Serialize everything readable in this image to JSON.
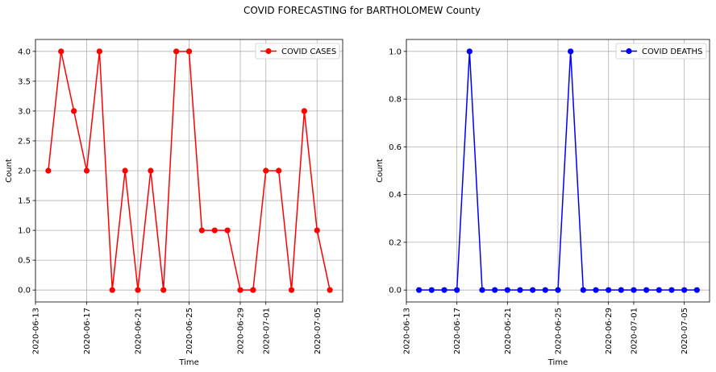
{
  "figure": {
    "title": "COVID FORECASTING for BARTHOLOMEW County"
  },
  "chart_data": [
    {
      "type": "line",
      "xlabel": "Time",
      "ylabel": "Count",
      "grid": true,
      "legend_position": "top-right",
      "x_range": [
        "2020-06-13",
        "2020-07-07"
      ],
      "y_range": [
        -0.2,
        4.2
      ],
      "x_ticks": [
        "2020-06-13",
        "2020-06-17",
        "2020-06-21",
        "2020-06-25",
        "2020-06-29",
        "2020-07-01",
        "2020-07-05"
      ],
      "y_ticks": [
        "0.0",
        "0.5",
        "1.0",
        "1.5",
        "2.0",
        "2.5",
        "3.0",
        "3.5",
        "4.0"
      ],
      "series": [
        {
          "name": "COVID CASES",
          "color": "#ff0000",
          "x": [
            "2020-06-14",
            "2020-06-15",
            "2020-06-16",
            "2020-06-17",
            "2020-06-18",
            "2020-06-19",
            "2020-06-20",
            "2020-06-21",
            "2020-06-22",
            "2020-06-23",
            "2020-06-24",
            "2020-06-25",
            "2020-06-26",
            "2020-06-27",
            "2020-06-28",
            "2020-06-29",
            "2020-06-30",
            "2020-07-01",
            "2020-07-02",
            "2020-07-03",
            "2020-07-04",
            "2020-07-05",
            "2020-07-06"
          ],
          "values": [
            2,
            4,
            3,
            2,
            4,
            0,
            2,
            0,
            2,
            0,
            4,
            4,
            1,
            1,
            1,
            0,
            0,
            2,
            2,
            0,
            3,
            1,
            0
          ]
        }
      ]
    },
    {
      "type": "line",
      "xlabel": "Time",
      "ylabel": "Count",
      "grid": true,
      "legend_position": "top-right",
      "x_range": [
        "2020-06-13",
        "2020-07-07"
      ],
      "y_range": [
        -0.05,
        1.05
      ],
      "x_ticks": [
        "2020-06-13",
        "2020-06-17",
        "2020-06-21",
        "2020-06-25",
        "2020-06-29",
        "2020-07-01",
        "2020-07-05"
      ],
      "y_ticks": [
        "0.0",
        "0.2",
        "0.4",
        "0.6",
        "0.8",
        "1.0"
      ],
      "series": [
        {
          "name": "COVID DEATHS",
          "color": "#0000ff",
          "x": [
            "2020-06-14",
            "2020-06-15",
            "2020-06-16",
            "2020-06-17",
            "2020-06-18",
            "2020-06-19",
            "2020-06-20",
            "2020-06-21",
            "2020-06-22",
            "2020-06-23",
            "2020-06-24",
            "2020-06-25",
            "2020-06-26",
            "2020-06-27",
            "2020-06-28",
            "2020-06-29",
            "2020-06-30",
            "2020-07-01",
            "2020-07-02",
            "2020-07-03",
            "2020-07-04",
            "2020-07-05",
            "2020-07-06"
          ],
          "values": [
            0,
            0,
            0,
            0,
            1,
            0,
            0,
            0,
            0,
            0,
            0,
            0,
            1,
            0,
            0,
            0,
            0,
            0,
            0,
            0,
            0,
            0,
            0
          ]
        }
      ]
    }
  ]
}
